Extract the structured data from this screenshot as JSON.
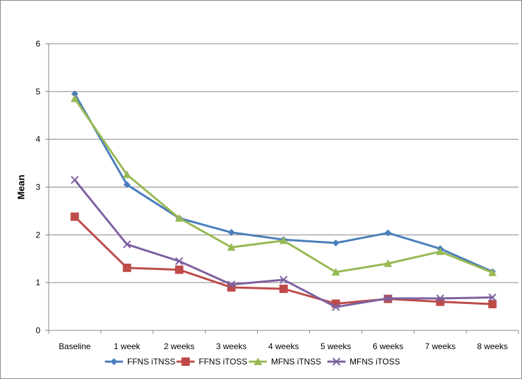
{
  "chart_data": {
    "type": "line",
    "categories": [
      "Baseline",
      "1 week",
      "2 weeks",
      "3 weeks",
      "4 weeks",
      "5 weeks",
      "6 weeks",
      "7 weeks",
      "8 weeks"
    ],
    "series": [
      {
        "name": "FFNS iTNSS",
        "color": "#4a7ebb",
        "marker": "diamond",
        "values": [
          4.95,
          3.05,
          2.35,
          2.05,
          1.9,
          1.83,
          2.04,
          1.71,
          1.23
        ]
      },
      {
        "name": "FFNS iTOSS",
        "color": "#be4b48",
        "marker": "square",
        "values": [
          2.38,
          1.31,
          1.27,
          0.9,
          0.87,
          0.56,
          0.66,
          0.6,
          0.55
        ]
      },
      {
        "name": "MFNS iTNSS",
        "color": "#98b954",
        "marker": "triangle",
        "values": [
          4.85,
          3.26,
          2.35,
          1.74,
          1.88,
          1.22,
          1.4,
          1.65,
          1.21
        ]
      },
      {
        "name": "MFNS iTOSS",
        "color": "#7d60a0",
        "marker": "x",
        "values": [
          3.15,
          1.8,
          1.45,
          0.96,
          1.06,
          0.49,
          0.67,
          0.67,
          0.69
        ]
      }
    ],
    "ylabel": "Mean",
    "xlabel": "",
    "ylim": [
      0,
      6
    ],
    "yticks": [
      0,
      1,
      2,
      3,
      4,
      5,
      6
    ],
    "grid": true,
    "legend_position": "bottom"
  }
}
